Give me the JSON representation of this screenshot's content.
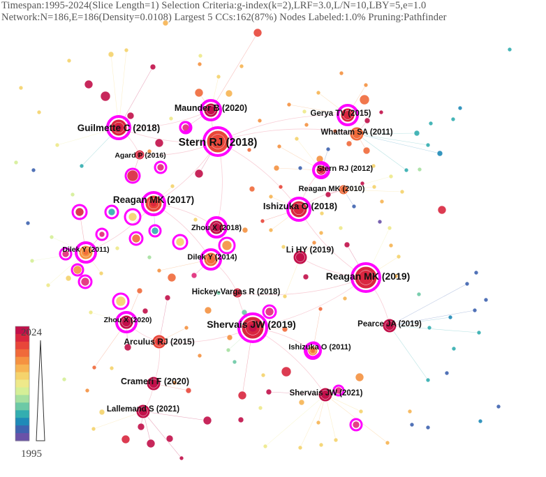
{
  "header": {
    "line1": "Timespan:1995-2024(Slice Length=1)  Selection Criteria:g-index(k=2),LRF=3.0,L/N=10,LBY=5,e=1.0",
    "line2": "Network:N=186,E=186(Density=0.0108)  Largest 5 CCs:162(87%)  Nodes Labeled:1.0%  Pruning:Pathfinder"
  },
  "legend": {
    "max_label": "2024",
    "min_label": "1995",
    "colors": [
      "#c2104a",
      "#d9263f",
      "#e8463a",
      "#f06a3a",
      "#f59241",
      "#f7b453",
      "#f5d36c",
      "#eee98a",
      "#d5ef97",
      "#a6e0a0",
      "#6cc9a6",
      "#33aeb0",
      "#1f8ab8",
      "#3f63b0",
      "#6a52a8"
    ]
  },
  "nodes": [
    {
      "id": "stern2018",
      "label": "Stern RJ (2018)",
      "year": 2019,
      "halo": true,
      "size": "xl"
    },
    {
      "id": "reagan2019",
      "label": "Reagan MK (2019)",
      "year": 2021,
      "halo": true,
      "size": "xl"
    },
    {
      "id": "shervais2019",
      "label": "Shervais JW (2019)",
      "year": 2022,
      "halo": true,
      "size": "xl"
    },
    {
      "id": "guilmette2018",
      "label": "Guilmette C (2018)",
      "year": 2022,
      "halo": true,
      "size": "l"
    },
    {
      "id": "reagan2017",
      "label": "Reagan MK (2017)",
      "year": 2020,
      "halo": true,
      "size": "l"
    },
    {
      "id": "ishizuka2018",
      "label": "Ishizuka O (2018)",
      "year": 2021,
      "halo": true,
      "size": "l"
    },
    {
      "id": "maunder2020",
      "label": "Maunder B (2020)",
      "year": 2023,
      "halo": true,
      "size": "m"
    },
    {
      "id": "gerya2015",
      "label": "Gerya TV (2015)",
      "year": 2021,
      "halo": true,
      "size": "m"
    },
    {
      "id": "whattam2011",
      "label": "Whattam SA (2011)",
      "year": 2017,
      "halo": false,
      "size": "m"
    },
    {
      "id": "agard2016",
      "label": "Agard P (2016)",
      "year": 2021,
      "halo": false,
      "size": "s"
    },
    {
      "id": "stern2012",
      "label": "Stern RJ (2012)",
      "year": 2022,
      "halo": true,
      "size": "s"
    },
    {
      "id": "reagan2010",
      "label": "Reagan MK (2010)",
      "year": 2017,
      "halo": false,
      "size": "s"
    },
    {
      "id": "zhou2018",
      "label": "Zhou X (2018)",
      "year": 2023,
      "halo": true,
      "size": "m"
    },
    {
      "id": "dilek2011",
      "label": "Dilek Y (2011)",
      "year": 2016,
      "halo": true,
      "size": "m"
    },
    {
      "id": "dilek2014",
      "label": "Dilek Y (2014)",
      "year": 2017,
      "halo": true,
      "size": "m"
    },
    {
      "id": "lihy2019",
      "label": "Li HY (2019)",
      "year": 2024,
      "halo": false,
      "size": "m"
    },
    {
      "id": "hickey2018",
      "label": "Hickey-Vargas R (2018)",
      "year": 2021,
      "halo": false,
      "size": "s"
    },
    {
      "id": "zhou2020",
      "label": "Zhou X (2020)",
      "year": 2023,
      "halo": true,
      "size": "m"
    },
    {
      "id": "pearce2019",
      "label": "Pearce JA (2019)",
      "year": 2024,
      "halo": false,
      "size": "m"
    },
    {
      "id": "arculus2015",
      "label": "Arculus RJ (2015)",
      "year": 2020,
      "halo": false,
      "size": "m"
    },
    {
      "id": "ishizuka2011",
      "label": "Ishizuka O (2011)",
      "year": 2016,
      "halo": true,
      "size": "s"
    },
    {
      "id": "crameri2020",
      "label": "Crameri F (2020)",
      "year": 2024,
      "halo": false,
      "size": "m"
    },
    {
      "id": "shervais2021",
      "label": "Shervais JW (2021)",
      "year": 2024,
      "halo": false,
      "size": "m"
    },
    {
      "id": "lallemand2021",
      "label": "Lallemand S (2021)",
      "year": 2024,
      "halo": false,
      "size": "m"
    }
  ]
}
